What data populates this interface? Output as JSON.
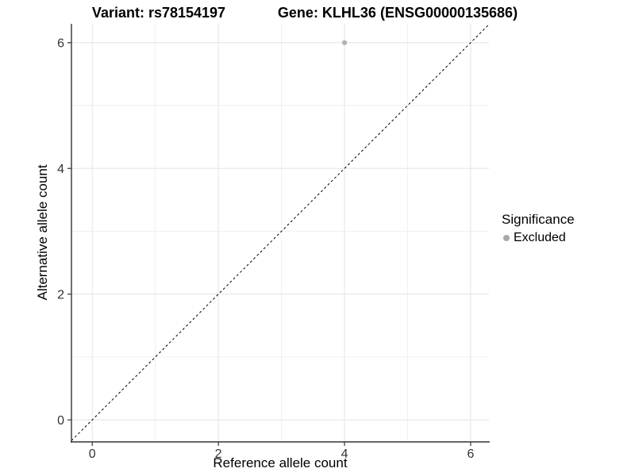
{
  "titles": {
    "variant": "Variant: rs78154197",
    "gene": "Gene: KLHL36 (ENSG00000135686)"
  },
  "chart_data": {
    "type": "scatter",
    "title_left": "Variant: rs78154197",
    "title_right": "Gene: KLHL36 (ENSG00000135686)",
    "xlabel": "Reference allele count",
    "ylabel": "Alternative allele count",
    "xlim": [
      -0.33,
      6.29
    ],
    "ylim": [
      -0.35,
      6.3
    ],
    "x_major_ticks": [
      0,
      2,
      4,
      6
    ],
    "y_major_ticks": [
      0,
      2,
      4,
      6
    ],
    "x_minor_gridlines": [
      1,
      3,
      5
    ],
    "y_minor_gridlines": [
      1,
      3,
      5
    ],
    "grid": true,
    "identity_line": {
      "style": "dashed",
      "from": -0.33,
      "to": 6.29
    },
    "points": [
      {
        "x": 4,
        "y": 6,
        "series": "Excluded"
      }
    ],
    "legend": {
      "title": "Significance",
      "position": "right",
      "items": [
        {
          "label": "Excluded",
          "color": "#aaaaaa"
        }
      ]
    }
  },
  "colors": {
    "point": "#b2b2b2",
    "legend_dot": "#a9a9a9",
    "grid_major": "#e4e4e4",
    "grid_minor": "#f0f0f0",
    "axis_line": "#333333",
    "tick_mark": "#333333",
    "tick_text": "#333333",
    "dashed_line": "#000000"
  }
}
